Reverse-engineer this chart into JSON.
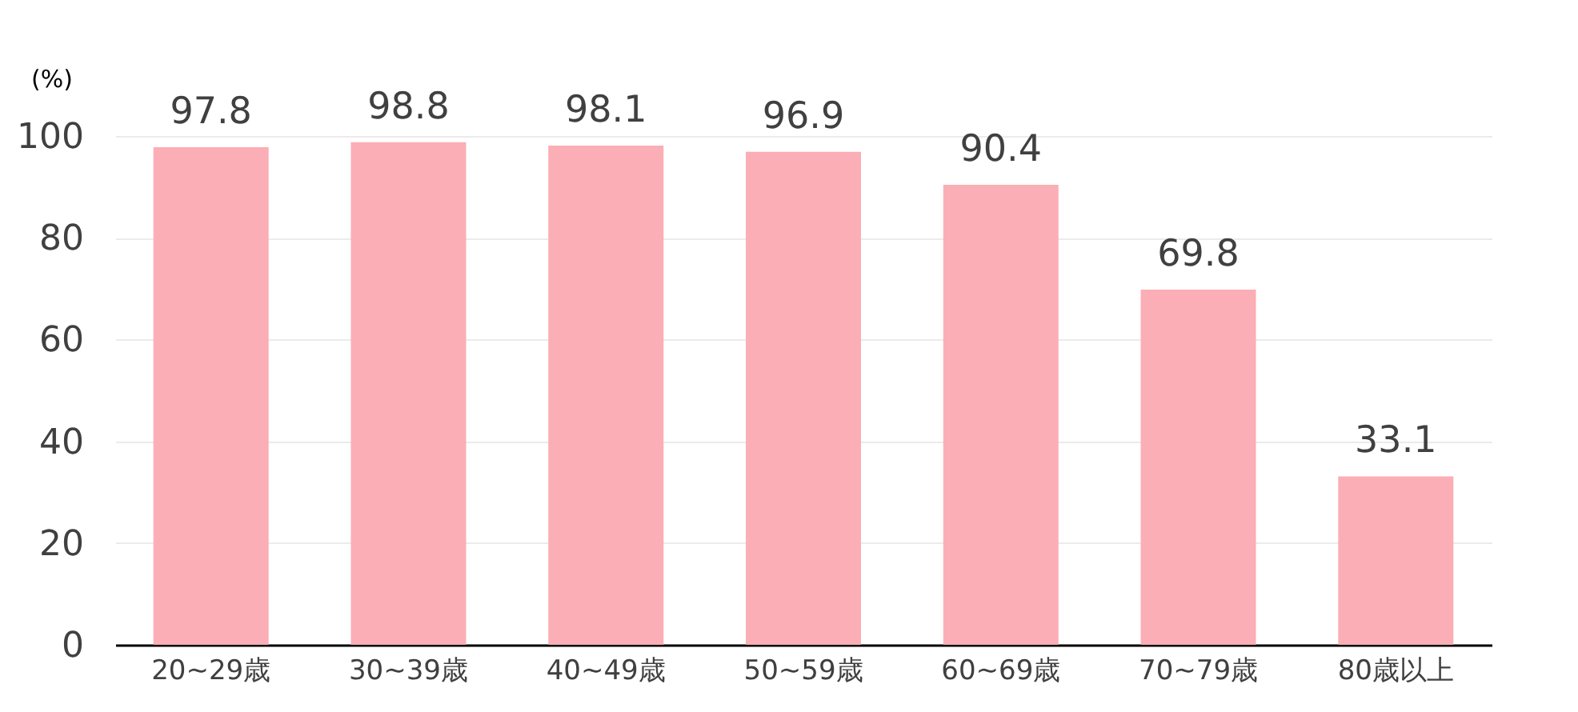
{
  "chart_data": {
    "type": "bar",
    "ylabel": "(%)",
    "categories": [
      "20~29歳",
      "30~39歳",
      "40~49歳",
      "50~59歳",
      "60~69歳",
      "70~79歳",
      "80歳以上"
    ],
    "values": [
      97.8,
      98.8,
      98.1,
      96.9,
      90.4,
      69.8,
      33.1
    ],
    "color": "#fbaeb5",
    "ylim": [
      0,
      100
    ],
    "yticks": [
      0,
      20,
      40,
      60,
      80,
      100
    ],
    "grid": "y",
    "data_labels": true
  }
}
